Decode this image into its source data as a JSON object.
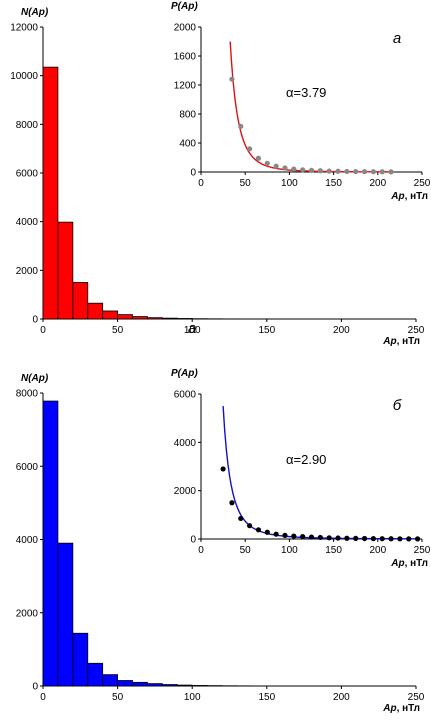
{
  "chart_data": [
    {
      "type": "bar",
      "role": "main",
      "ylabel": "N(Ap)",
      "xlabel": "Ap, нТл",
      "xlim": [
        0,
        250
      ],
      "ylim": [
        0,
        12000
      ],
      "xticks": [
        0,
        50,
        100,
        150,
        200,
        250
      ],
      "yticks": [
        0,
        2000,
        4000,
        6000,
        8000,
        10000,
        12000
      ],
      "bin_width": 10,
      "bar_color": "#ff0000",
      "bins_start": [
        0,
        10,
        20,
        30,
        40,
        50,
        60,
        70,
        80,
        90,
        100,
        110,
        120
      ],
      "values": [
        10350,
        3980,
        1500,
        650,
        330,
        180,
        100,
        55,
        35,
        22,
        12,
        8,
        5
      ],
      "annotation": "а"
    },
    {
      "type": "scatter",
      "role": "inset",
      "ylabel": "P(Ap)",
      "xlabel": "Ap, нТл",
      "xlim": [
        0,
        250
      ],
      "ylim": [
        0,
        2000
      ],
      "xticks": [
        0,
        50,
        100,
        150,
        200,
        250
      ],
      "yticks": [
        0,
        400,
        800,
        1200,
        1600,
        2000
      ],
      "panel_label": "а",
      "alpha_label": "α=3.79",
      "point_color": "#888888",
      "curve_color": "#dd1111",
      "points": {
        "x": [
          35,
          45,
          55,
          65,
          75,
          85,
          95,
          105,
          115,
          125,
          135,
          145,
          155,
          165,
          175,
          185,
          195,
          205,
          215
        ],
        "y": [
          1280,
          630,
          320,
          190,
          120,
          80,
          55,
          40,
          30,
          22,
          17,
          13,
          10,
          8,
          6,
          5,
          4,
          3,
          2
        ]
      },
      "fit": {
        "x_from": 33,
        "x_to": 215,
        "y_at_start": 1800
      }
    },
    {
      "type": "bar",
      "role": "main",
      "ylabel": "N(Ap)",
      "xlabel": "Ap, нТл",
      "xlim": [
        0,
        250
      ],
      "ylim": [
        0,
        8000
      ],
      "xticks": [
        0,
        50,
        100,
        150,
        200,
        250
      ],
      "yticks": [
        0,
        2000,
        4000,
        6000,
        8000
      ],
      "bin_width": 10,
      "bar_color": "#0000ff",
      "bins_start": [
        0,
        10,
        20,
        30,
        40,
        50,
        60,
        70,
        80,
        90,
        100,
        110,
        120,
        130
      ],
      "values": [
        7780,
        3900,
        1440,
        620,
        310,
        150,
        100,
        65,
        40,
        25,
        15,
        10,
        6,
        4
      ]
    },
    {
      "type": "scatter",
      "role": "inset",
      "ylabel": "P(Ap)",
      "xlabel": "Ap, нТл",
      "xlim": [
        0,
        250
      ],
      "ylim": [
        0,
        6000
      ],
      "xticks": [
        0,
        50,
        100,
        150,
        200,
        250
      ],
      "yticks": [
        0,
        2000,
        4000,
        6000
      ],
      "panel_label": "б",
      "alpha_label": "α=2.90",
      "point_color": "#000000",
      "curve_color": "#1111cc",
      "points": {
        "x": [
          25,
          35,
          45,
          55,
          65,
          75,
          85,
          95,
          105,
          115,
          125,
          135,
          145,
          155,
          165,
          175,
          185,
          195,
          205,
          215,
          225,
          235,
          245
        ],
        "y": [
          2900,
          1500,
          850,
          550,
          380,
          280,
          200,
          150,
          120,
          100,
          80,
          65,
          50,
          40,
          30,
          25,
          20,
          15,
          12,
          10,
          8,
          6,
          5
        ]
      },
      "fit": {
        "x_from": 25,
        "x_to": 245,
        "y_at_start": 5500
      }
    }
  ]
}
